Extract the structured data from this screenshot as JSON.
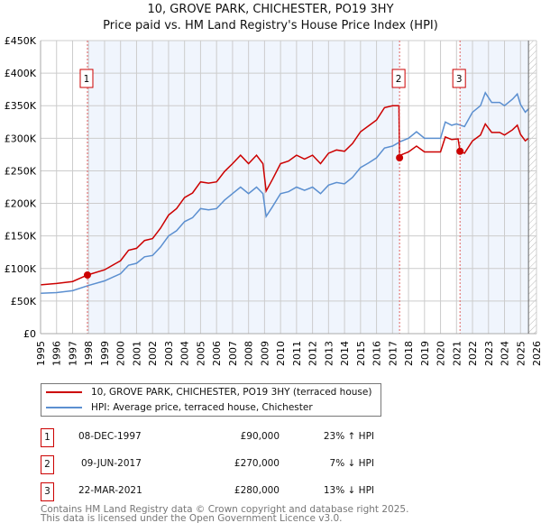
{
  "chart_data": {
    "type": "line",
    "title": "10, GROVE PARK, CHICHESTER, PO19 3HY",
    "subtitle": "Price paid vs. HM Land Registry's House Price Index (HPI)",
    "xlim": [
      1995,
      2026
    ],
    "ylim": [
      0,
      450000
    ],
    "x_ticks": [
      "1995",
      "1996",
      "1997",
      "1998",
      "1999",
      "2000",
      "2001",
      "2002",
      "2003",
      "2004",
      "2005",
      "2006",
      "2007",
      "2008",
      "2009",
      "2010",
      "2011",
      "2012",
      "2013",
      "2014",
      "2015",
      "2016",
      "2017",
      "2018",
      "2019",
      "2020",
      "2021",
      "2022",
      "2023",
      "2024",
      "2025",
      "2026"
    ],
    "y_ticks": [
      {
        "v": 0,
        "label": "£0"
      },
      {
        "v": 50000,
        "label": "£50K"
      },
      {
        "v": 100000,
        "label": "£100K"
      },
      {
        "v": 150000,
        "label": "£150K"
      },
      {
        "v": 200000,
        "label": "£200K"
      },
      {
        "v": 250000,
        "label": "£250K"
      },
      {
        "v": 300000,
        "label": "£300K"
      },
      {
        "v": 350000,
        "label": "£350K"
      },
      {
        "v": 400000,
        "label": "£400K"
      },
      {
        "v": 450000,
        "label": "£450K"
      }
    ],
    "grid": true,
    "series": [
      {
        "name": "10, GROVE PARK, CHICHESTER, PO19 3HY (terraced house)",
        "color": "#cc0000",
        "points": [
          [
            1995,
            75
          ],
          [
            1996,
            77
          ],
          [
            1997,
            80
          ],
          [
            1997.93,
            90
          ],
          [
            1999,
            98
          ],
          [
            2000,
            112
          ],
          [
            2000.5,
            128
          ],
          [
            2001,
            131
          ],
          [
            2001.5,
            143
          ],
          [
            2002,
            146
          ],
          [
            2002.5,
            162
          ],
          [
            2003,
            182
          ],
          [
            2003.5,
            192
          ],
          [
            2004,
            209
          ],
          [
            2004.5,
            216
          ],
          [
            2005,
            233
          ],
          [
            2005.5,
            231
          ],
          [
            2006,
            233
          ],
          [
            2006.5,
            249
          ],
          [
            2007,
            261
          ],
          [
            2007.5,
            274
          ],
          [
            2008,
            261
          ],
          [
            2008.5,
            274
          ],
          [
            2008.9,
            261
          ],
          [
            2009.1,
            219
          ],
          [
            2009.5,
            237
          ],
          [
            2010,
            261
          ],
          [
            2010.5,
            265
          ],
          [
            2011,
            274
          ],
          [
            2011.5,
            268
          ],
          [
            2012,
            274
          ],
          [
            2012.5,
            261
          ],
          [
            2013,
            277
          ],
          [
            2013.5,
            282
          ],
          [
            2014,
            280
          ],
          [
            2014.5,
            292
          ],
          [
            2015,
            310
          ],
          [
            2015.5,
            319
          ],
          [
            2016,
            328
          ],
          [
            2016.5,
            347
          ],
          [
            2017,
            350
          ],
          [
            2017.4,
            350
          ],
          [
            2017.44,
            270
          ],
          [
            2017.5,
            274
          ],
          [
            2018,
            279
          ],
          [
            2018.5,
            288
          ],
          [
            2019,
            279
          ],
          [
            2019.5,
            279
          ],
          [
            2020,
            279
          ],
          [
            2020.3,
            302
          ],
          [
            2020.7,
            298
          ],
          [
            2021.1,
            299
          ],
          [
            2021.22,
            280
          ],
          [
            2021.5,
            277
          ],
          [
            2022,
            296
          ],
          [
            2022.5,
            305
          ],
          [
            2022.8,
            322
          ],
          [
            2023.2,
            309
          ],
          [
            2023.7,
            309
          ],
          [
            2024,
            305
          ],
          [
            2024.5,
            313
          ],
          [
            2024.8,
            320
          ],
          [
            2025,
            306
          ],
          [
            2025.3,
            296
          ],
          [
            2025.5,
            300
          ]
        ]
      },
      {
        "name": "HPI: Average price, terraced house, Chichester",
        "color": "#5b8fd0",
        "points": [
          [
            1995,
            62
          ],
          [
            1996,
            63
          ],
          [
            1997,
            66
          ],
          [
            1998,
            74
          ],
          [
            1999,
            81
          ],
          [
            2000,
            92
          ],
          [
            2000.5,
            105
          ],
          [
            2001,
            108
          ],
          [
            2001.5,
            118
          ],
          [
            2002,
            120
          ],
          [
            2002.5,
            133
          ],
          [
            2003,
            150
          ],
          [
            2003.5,
            158
          ],
          [
            2004,
            172
          ],
          [
            2004.5,
            178
          ],
          [
            2005,
            192
          ],
          [
            2005.5,
            190
          ],
          [
            2006,
            192
          ],
          [
            2006.5,
            205
          ],
          [
            2007,
            215
          ],
          [
            2007.5,
            225
          ],
          [
            2008,
            215
          ],
          [
            2008.5,
            225
          ],
          [
            2008.9,
            215
          ],
          [
            2009.1,
            180
          ],
          [
            2009.5,
            195
          ],
          [
            2010,
            215
          ],
          [
            2010.5,
            218
          ],
          [
            2011,
            225
          ],
          [
            2011.5,
            220
          ],
          [
            2012,
            225
          ],
          [
            2012.5,
            215
          ],
          [
            2013,
            228
          ],
          [
            2013.5,
            232
          ],
          [
            2014,
            230
          ],
          [
            2014.5,
            240
          ],
          [
            2015,
            255
          ],
          [
            2015.5,
            262
          ],
          [
            2016,
            270
          ],
          [
            2016.5,
            285
          ],
          [
            2017,
            288
          ],
          [
            2017.5,
            295
          ],
          [
            2018,
            300
          ],
          [
            2018.5,
            310
          ],
          [
            2019,
            300
          ],
          [
            2019.5,
            300
          ],
          [
            2020,
            300
          ],
          [
            2020.3,
            325
          ],
          [
            2020.7,
            320
          ],
          [
            2021,
            322
          ],
          [
            2021.5,
            318
          ],
          [
            2022,
            340
          ],
          [
            2022.5,
            350
          ],
          [
            2022.8,
            370
          ],
          [
            2023.2,
            355
          ],
          [
            2023.7,
            355
          ],
          [
            2024,
            350
          ],
          [
            2024.5,
            360
          ],
          [
            2024.8,
            368
          ],
          [
            2025,
            352
          ],
          [
            2025.3,
            340
          ],
          [
            2025.5,
            345
          ]
        ]
      }
    ],
    "y_units": "thousands GBP",
    "sales": [
      {
        "label": "1",
        "x": 1997.93,
        "y": 90
      },
      {
        "label": "2",
        "x": 2017.44,
        "y": 270
      },
      {
        "label": "3",
        "x": 2021.22,
        "y": 280
      }
    ],
    "forecast_start": 2025.5
  },
  "legend": {
    "red": "10, GROVE PARK, CHICHESTER, PO19 3HY (terraced house)",
    "blue": "HPI: Average price, terraced house, Chichester"
  },
  "table": [
    {
      "n": "1",
      "date": "08-DEC-1997",
      "price": "£90,000",
      "hpi": "23% ↑ HPI"
    },
    {
      "n": "2",
      "date": "09-JUN-2017",
      "price": "£270,000",
      "hpi": "7% ↓ HPI"
    },
    {
      "n": "3",
      "date": "22-MAR-2021",
      "price": "£280,000",
      "hpi": "13% ↓ HPI"
    }
  ],
  "footer": [
    "Contains HM Land Registry data © Crown copyright and database right 2025.",
    "This data is licensed under the Open Government Licence v3.0."
  ]
}
